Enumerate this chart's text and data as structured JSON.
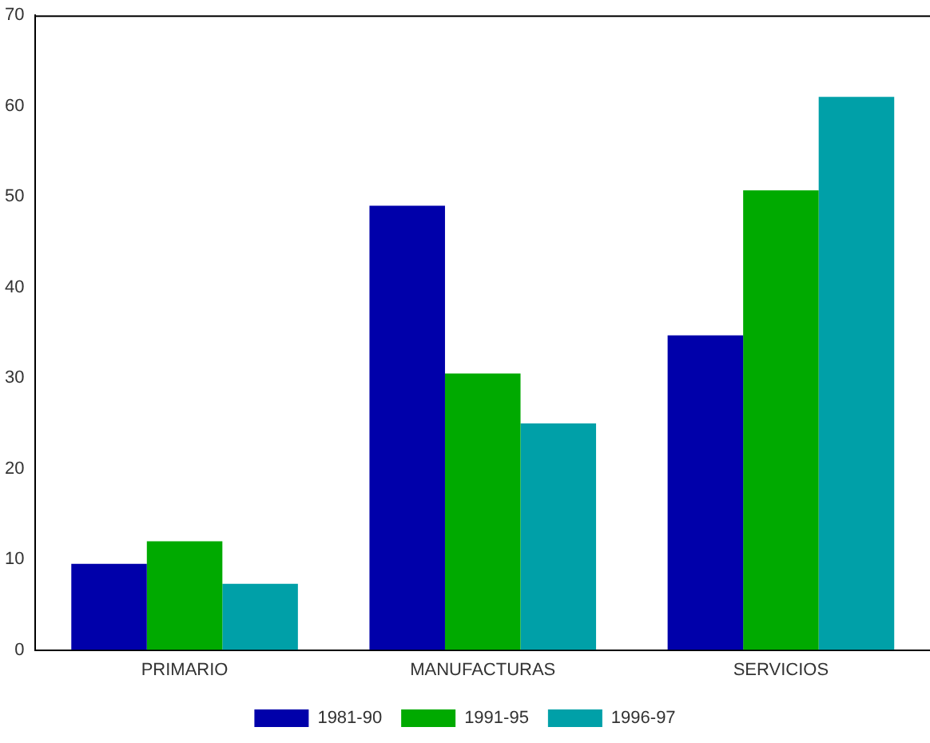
{
  "chart_data": {
    "type": "bar",
    "categories": [
      "PRIMARIO",
      "MANUFACTURAS",
      "SERVICIOS"
    ],
    "series": [
      {
        "name": "1981-90",
        "color": "#0000aa",
        "values": [
          9.5,
          49,
          34.7
        ]
      },
      {
        "name": "1991-95",
        "color": "#00aa00",
        "values": [
          12,
          30.5,
          50.7
        ]
      },
      {
        "name": "1996-97",
        "color": "#00a0a8",
        "values": [
          7.3,
          25,
          61
        ]
      }
    ],
    "ylim": [
      0,
      70
    ],
    "yticks": [
      0,
      10,
      20,
      30,
      40,
      50,
      60,
      70
    ],
    "grid": false,
    "legend": "bottom"
  }
}
